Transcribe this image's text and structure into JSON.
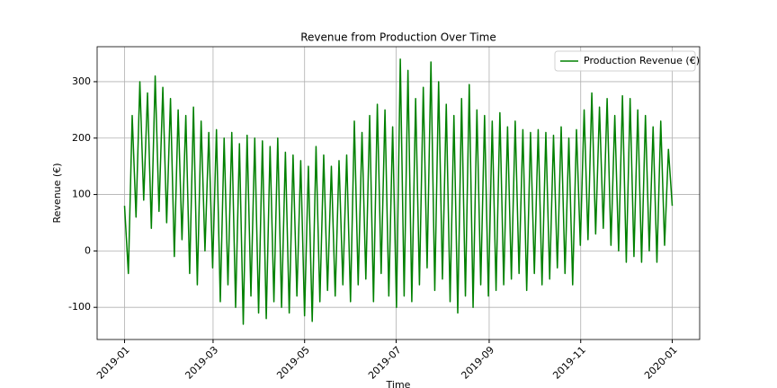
{
  "chart_data": {
    "type": "line",
    "title": "Revenue from Production Over Time",
    "x_label": "Time",
    "y_label": "Revenue (€)",
    "x_range": [
      "2019-01",
      "2020-01"
    ],
    "xticks": [
      "2019-01",
      "2019-03",
      "2019-05",
      "2019-07",
      "2019-09",
      "2019-11",
      "2020-01"
    ],
    "ylim": [
      -157,
      362
    ],
    "yticks": [
      -100,
      0,
      100,
      200,
      300
    ],
    "grid": true,
    "legend": "upper right",
    "series": [
      {
        "name": "Production Revenue (€)",
        "color": "#008000",
        "values": [
          80,
          -40,
          240,
          60,
          300,
          90,
          280,
          40,
          310,
          70,
          290,
          50,
          270,
          -10,
          250,
          20,
          240,
          -40,
          255,
          -60,
          230,
          0,
          210,
          -30,
          215,
          -90,
          200,
          -60,
          210,
          -100,
          190,
          -130,
          205,
          -80,
          200,
          -110,
          195,
          -120,
          185,
          -90,
          200,
          -100,
          175,
          -110,
          170,
          -80,
          160,
          -115,
          150,
          -125,
          185,
          -90,
          170,
          -70,
          150,
          -80,
          160,
          -60,
          170,
          -90,
          230,
          -60,
          210,
          -50,
          240,
          -90,
          260,
          -40,
          250,
          -80,
          220,
          -100,
          340,
          -80,
          320,
          -90,
          270,
          -60,
          290,
          -30,
          335,
          -70,
          300,
          -50,
          260,
          -90,
          240,
          -110,
          270,
          -80,
          295,
          -100,
          250,
          -60,
          240,
          -80,
          230,
          -70,
          245,
          -60,
          220,
          -50,
          230,
          -40,
          215,
          -70,
          210,
          -40,
          215,
          -60,
          210,
          -50,
          205,
          -30,
          220,
          -40,
          200,
          -60,
          215,
          10,
          250,
          20,
          280,
          30,
          255,
          40,
          270,
          10,
          240,
          0,
          275,
          -20,
          270,
          -10,
          250,
          -20,
          240,
          0,
          220,
          -20,
          230,
          10,
          180,
          80
        ]
      }
    ]
  }
}
